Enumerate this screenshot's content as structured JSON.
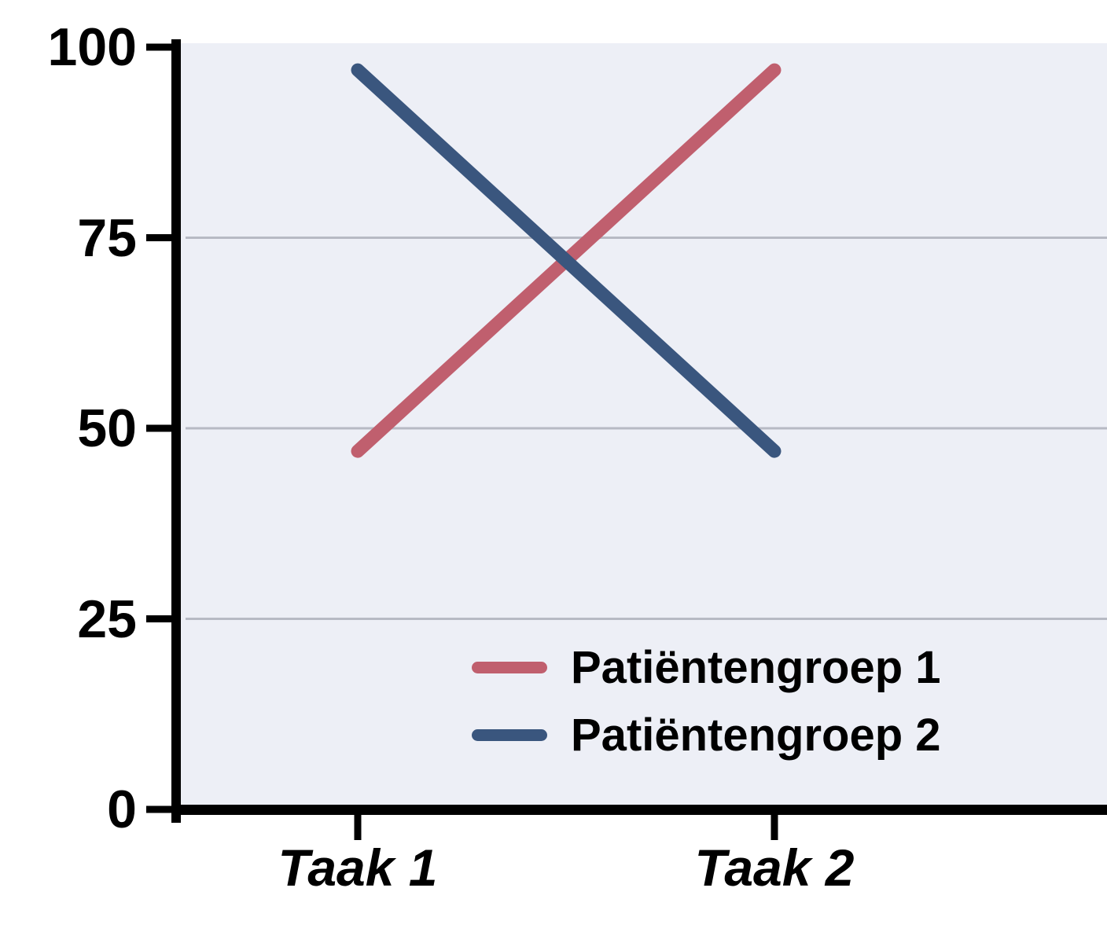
{
  "chart_data": {
    "type": "line",
    "title": "",
    "xlabel": "",
    "ylabel": "",
    "categories": [
      "Taak 1",
      "Taak 2"
    ],
    "series": [
      {
        "name": "Patiëntengroep 1",
        "color": "#c05f6e",
        "values": [
          47,
          97
        ]
      },
      {
        "name": "Patiëntengroep 2",
        "color": "#3a567e",
        "values": [
          97,
          47
        ]
      }
    ],
    "ylim": [
      0,
      100
    ],
    "yticks": [
      0,
      25,
      50,
      75,
      100
    ],
    "grid": true,
    "grid_color": "#b7bac4",
    "plot_bg": "#edeff6",
    "axis_color": "#000000",
    "legend_position": "inside-bottom-right"
  }
}
